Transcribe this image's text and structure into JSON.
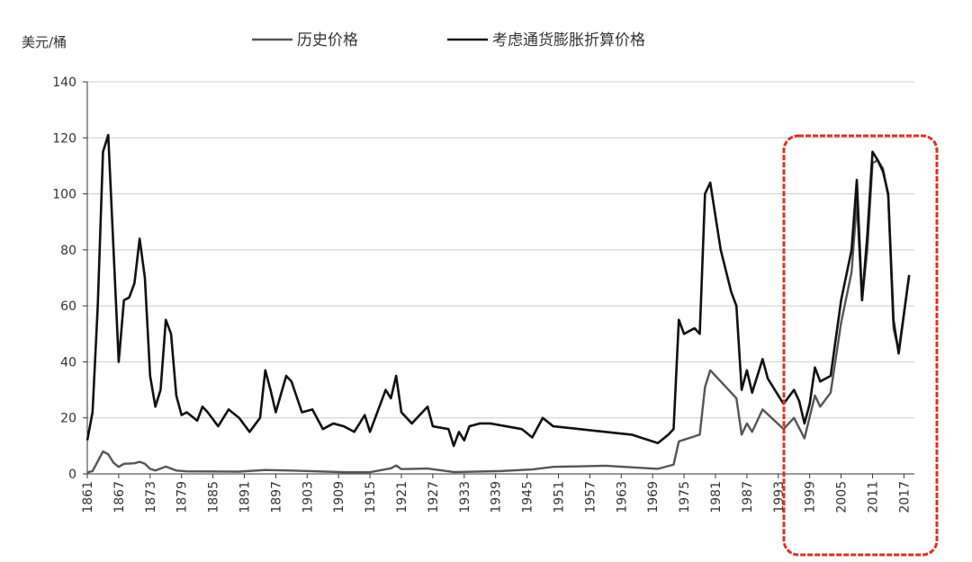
{
  "chart_data": {
    "type": "line",
    "y_label": "美元/桶",
    "xlim": [
      1861,
      2019
    ],
    "ylim": [
      0,
      140
    ],
    "xticks": [
      1861,
      1867,
      1873,
      1879,
      1885,
      1891,
      1897,
      1903,
      1909,
      1915,
      1921,
      1927,
      1933,
      1939,
      1945,
      1951,
      1957,
      1963,
      1969,
      1975,
      1981,
      1987,
      1993,
      1999,
      2005,
      2011,
      2017
    ],
    "yticks": [
      0,
      20,
      40,
      60,
      80,
      100,
      120,
      140
    ],
    "grid": true,
    "series": [
      {
        "name": "历史价格",
        "color": "#555555",
        "x": [
          1861,
          1862,
          1864,
          1865,
          1866,
          1867,
          1868,
          1870,
          1871,
          1872,
          1873,
          1874,
          1876,
          1878,
          1880,
          1890,
          1895,
          1900,
          1910,
          1915,
          1919,
          1920,
          1921,
          1926,
          1931,
          1940,
          1946,
          1950,
          1960,
          1970,
          1973,
          1974,
          1978,
          1979,
          1980,
          1982,
          1985,
          1986,
          1987,
          1988,
          1990,
          1994,
          1996,
          1998,
          2000,
          2001,
          2003,
          2005,
          2007,
          2008,
          2009,
          2010,
          2011,
          2012,
          2013,
          2014,
          2015,
          2016,
          2018
        ],
        "values": [
          0.5,
          1,
          8,
          7,
          4,
          2.5,
          3.6,
          3.8,
          4.3,
          3.6,
          1.8,
          1.2,
          2.6,
          1.2,
          0.9,
          0.8,
          1.4,
          1.2,
          0.6,
          0.6,
          2,
          3,
          1.7,
          1.9,
          0.65,
          1,
          1.6,
          2.5,
          2.9,
          1.8,
          3.3,
          11.6,
          14,
          31,
          37,
          33,
          27,
          14,
          18,
          15,
          23,
          16,
          20,
          12.7,
          28,
          24,
          29,
          54,
          72,
          97,
          62,
          80,
          111,
          112,
          109,
          99,
          52,
          44,
          71
        ]
      },
      {
        "name": "考虑通货膨胀折算价格",
        "color": "#111111",
        "x": [
          1861,
          1862,
          1863,
          1864,
          1865,
          1867,
          1868,
          1869,
          1870,
          1871,
          1872,
          1873,
          1874,
          1875,
          1876,
          1877,
          1878,
          1879,
          1880,
          1882,
          1883,
          1884,
          1886,
          1888,
          1890,
          1892,
          1894,
          1895,
          1896,
          1897,
          1899,
          1900,
          1902,
          1904,
          1906,
          1908,
          1910,
          1912,
          1914,
          1915,
          1917,
          1918,
          1919,
          1920,
          1921,
          1923,
          1926,
          1927,
          1930,
          1931,
          1932,
          1933,
          1934,
          1936,
          1938,
          1941,
          1944,
          1946,
          1948,
          1950,
          1955,
          1960,
          1965,
          1970,
          1972,
          1973,
          1974,
          1975,
          1977,
          1978,
          1979,
          1980,
          1982,
          1984,
          1985,
          1986,
          1987,
          1988,
          1990,
          1991,
          1993,
          1994,
          1996,
          1997,
          1998,
          1999,
          2000,
          2001,
          2003,
          2005,
          2007,
          2008,
          2009,
          2010,
          2011,
          2012,
          2013,
          2014,
          2015,
          2016,
          2018
        ],
        "values": [
          12,
          22,
          60,
          115,
          121,
          40,
          62,
          63,
          68,
          84,
          70,
          35,
          24,
          30,
          55,
          50,
          28,
          21,
          22,
          19,
          24,
          22,
          17,
          23,
          20,
          15,
          20,
          37,
          30,
          22,
          35,
          33,
          22,
          23,
          16,
          18,
          17,
          15,
          21,
          15,
          25,
          30,
          27,
          35,
          22,
          18,
          24,
          17,
          16,
          10,
          15,
          12,
          17,
          18,
          18,
          17,
          16,
          13,
          20,
          17,
          16,
          15,
          14,
          11,
          14,
          16,
          55,
          50,
          52,
          50,
          100,
          104,
          80,
          65,
          60,
          30,
          37,
          29,
          41,
          34,
          28,
          25,
          30,
          26,
          18,
          25,
          38,
          33,
          35,
          62,
          80,
          105,
          62,
          85,
          115,
          112,
          108,
          100,
          55,
          43,
          71
        ]
      }
    ]
  }
}
